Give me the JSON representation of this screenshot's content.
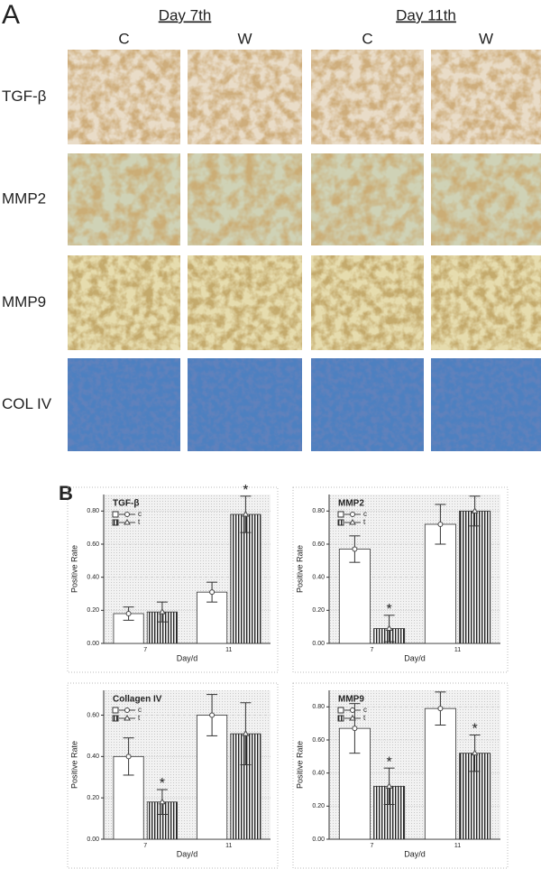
{
  "panel_a": {
    "label": "A",
    "groups": [
      "Day 7th",
      "Day 11th"
    ],
    "columns": [
      "C",
      "W",
      "C",
      "W"
    ],
    "rows": [
      "TGF-β",
      "MMP2",
      "MMP9",
      "COL IV"
    ]
  },
  "panel_b": {
    "label": "B"
  },
  "chart_data": [
    {
      "type": "bar",
      "title": "TGF-β",
      "x_label": "Day/d",
      "y_label": "Positive Rate",
      "categories": [
        "7",
        "11"
      ],
      "series": [
        {
          "name": "c",
          "color": "#ffffff",
          "values": [
            0.18,
            0.31
          ],
          "errors": [
            0.04,
            0.06
          ]
        },
        {
          "name": "t",
          "color": "#333333",
          "values": [
            0.19,
            0.78
          ],
          "errors": [
            0.06,
            0.11
          ]
        }
      ],
      "annotations": [
        {
          "text": "*",
          "series": 1,
          "index": 1
        }
      ],
      "ylim": [
        0,
        0.9
      ],
      "yticks": [
        {
          "value": 0,
          "label": "0.00"
        },
        {
          "value": 0.2,
          "label": "0.20"
        },
        {
          "value": 0.4,
          "label": "0.40"
        },
        {
          "value": 0.6,
          "label": "0.60"
        },
        {
          "value": 0.8,
          "label": "0.80"
        }
      ],
      "grid": true
    },
    {
      "type": "bar",
      "title": "MMP2",
      "x_label": "Day/d",
      "y_label": "Positive Rate",
      "categories": [
        "7",
        "11"
      ],
      "series": [
        {
          "name": "c",
          "color": "#ffffff",
          "values": [
            0.57,
            0.72
          ],
          "errors": [
            0.08,
            0.12
          ]
        },
        {
          "name": "t",
          "color": "#333333",
          "values": [
            0.09,
            0.8
          ],
          "errors": [
            0.08,
            0.09
          ]
        }
      ],
      "annotations": [
        {
          "text": "*",
          "series": 1,
          "index": 0
        }
      ],
      "ylim": [
        0,
        0.9
      ],
      "yticks": [
        {
          "value": 0,
          "label": "0.00"
        },
        {
          "value": 0.2,
          "label": "0.20"
        },
        {
          "value": 0.4,
          "label": "0.40"
        },
        {
          "value": 0.6,
          "label": "0.60"
        },
        {
          "value": 0.8,
          "label": "0.80"
        }
      ],
      "grid": true
    },
    {
      "type": "bar",
      "title": "Collagen IV",
      "x_label": "Day/d",
      "y_label": "Positive Rate",
      "categories": [
        "7",
        "11"
      ],
      "series": [
        {
          "name": "c",
          "color": "#ffffff",
          "values": [
            0.4,
            0.6
          ],
          "errors": [
            0.09,
            0.1
          ]
        },
        {
          "name": "t",
          "color": "#333333",
          "values": [
            0.18,
            0.51
          ],
          "errors": [
            0.06,
            0.15
          ]
        }
      ],
      "annotations": [
        {
          "text": "*",
          "series": 1,
          "index": 0
        }
      ],
      "ylim": [
        0,
        0.72
      ],
      "yticks": [
        {
          "value": 0,
          "label": "0.00"
        },
        {
          "value": 0.2,
          "label": "0.20"
        },
        {
          "value": 0.4,
          "label": "0.40"
        },
        {
          "value": 0.6,
          "label": "0.60"
        }
      ],
      "grid": true
    },
    {
      "type": "bar",
      "title": "MMP9",
      "x_label": "Day/d",
      "y_label": "Positive Rate",
      "categories": [
        "7",
        "11"
      ],
      "series": [
        {
          "name": "c",
          "color": "#ffffff",
          "values": [
            0.67,
            0.79
          ],
          "errors": [
            0.15,
            0.1
          ]
        },
        {
          "name": "t",
          "color": "#333333",
          "values": [
            0.32,
            0.52
          ],
          "errors": [
            0.11,
            0.11
          ]
        }
      ],
      "annotations": [
        {
          "text": "*",
          "series": 1,
          "index": 0
        },
        {
          "text": "*",
          "series": 1,
          "index": 1
        }
      ],
      "ylim": [
        0,
        0.9
      ],
      "yticks": [
        {
          "value": 0,
          "label": "0.00"
        },
        {
          "value": 0.2,
          "label": "0.20"
        },
        {
          "value": 0.4,
          "label": "0.40"
        },
        {
          "value": 0.6,
          "label": "0.60"
        },
        {
          "value": 0.8,
          "label": "0.80"
        }
      ],
      "grid": true
    }
  ]
}
